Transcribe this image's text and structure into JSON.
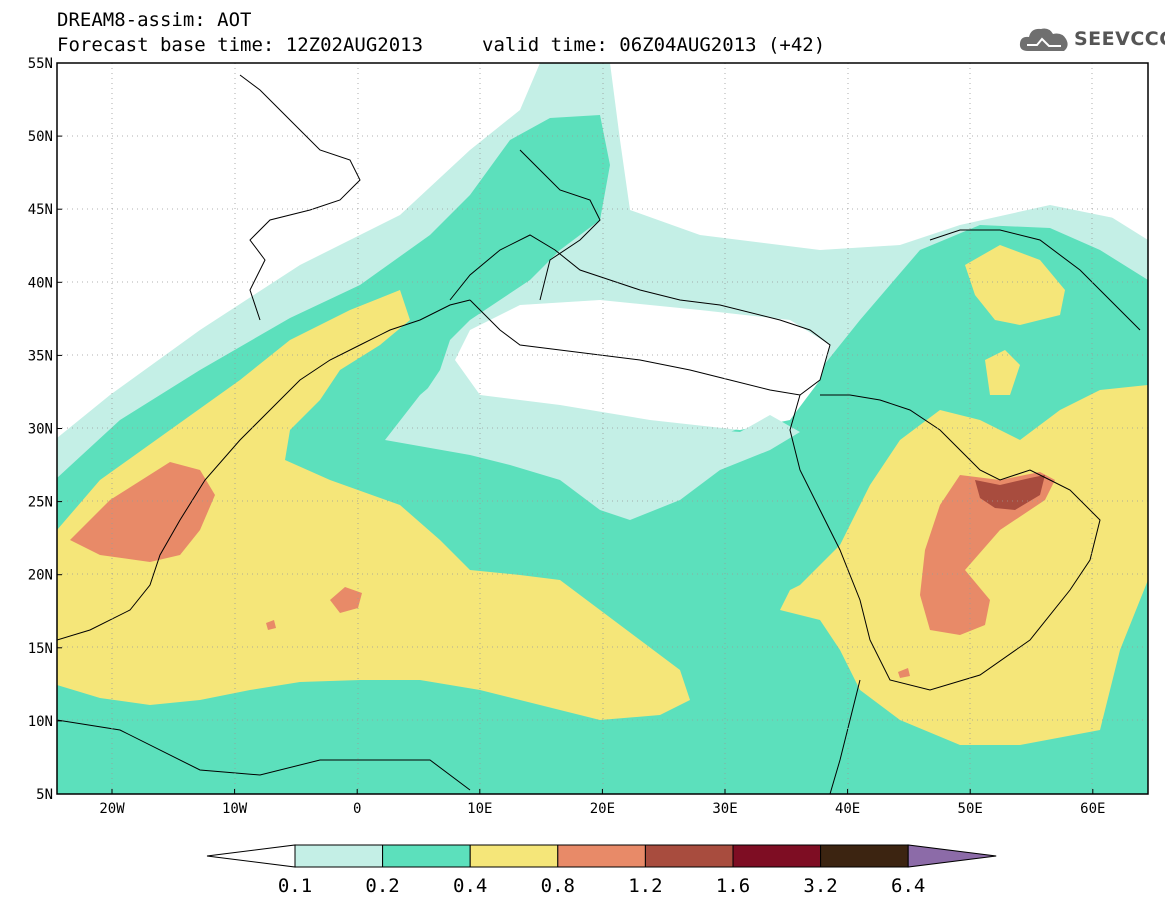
{
  "header": {
    "line1": "DREAM8-assim: AOT",
    "line2": "Forecast base time: 12Z02AUG2013",
    "valid": "valid time: 06Z04AUG2013 (+42)"
  },
  "logo": {
    "text": "SEEVCCC",
    "icon": "cloud-icon"
  },
  "map": {
    "lat_labels": [
      "55N",
      "50N",
      "45N",
      "40N",
      "35N",
      "30N",
      "25N",
      "20N",
      "15N",
      "10N",
      "5N"
    ],
    "lon_labels": [
      "20W",
      "10W",
      "0",
      "10E",
      "20E",
      "30E",
      "40E",
      "50E",
      "60E"
    ]
  },
  "legend": {
    "thresholds": [
      "0.1",
      "0.2",
      "0.4",
      "0.8",
      "1.2",
      "1.6",
      "3.2",
      "6.4"
    ],
    "colors": [
      "#ffffff",
      "#c4efe6",
      "#5ce0bc",
      "#f5e679",
      "#e88a68",
      "#a84c3e",
      "#7e0d23",
      "#3c2411",
      "#8c6ba8"
    ]
  },
  "colors": {
    "aot_0_1": "#c4efe6",
    "aot_0_2": "#5ce0bc",
    "aot_0_4": "#f5e679",
    "aot_0_8": "#e88a68",
    "aot_1_2": "#a84c3e"
  }
}
